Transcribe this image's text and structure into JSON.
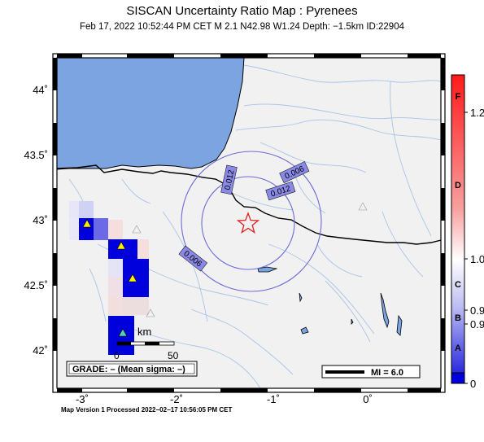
{
  "title": "SISCAN Uncertainty Ratio Map : Pyrenees",
  "subtitle": "Feb 17, 2022 10:52:44 PM CET   M 2.1    N42.98 W1.24    Depth: −1.5km    ID:22904",
  "footer": "Map Version 1 Processed 2022−02−17 10:56:05 PM CET",
  "axes": {
    "x_ticks": [
      "-3˚",
      "-2˚",
      "-1˚",
      "0˚"
    ],
    "y_ticks": [
      "44˚",
      "43.5˚",
      "43˚",
      "42.5˚",
      "42˚"
    ]
  },
  "contours": {
    "labels": [
      "0.012",
      "0.006",
      "0.012",
      "0.006"
    ]
  },
  "scale_bar": {
    "unit": "km",
    "start": "0",
    "end": "50"
  },
  "grade_box": "GRADE: – (Mean sigma: –)",
  "mi_box": "MI = 6.0",
  "colorbar": {
    "grades": [
      "F",
      "D",
      "C",
      "B",
      "A"
    ],
    "values": [
      "1.2",
      "1.0",
      "0.9",
      "0.9",
      "0"
    ]
  },
  "colors": {
    "sea": "#7ba4e0",
    "land": "#f1f1f1",
    "border": "#000000",
    "contour": "#6b6bd6",
    "epicenter": "#e02020",
    "cell_blue": "#0000dd",
    "station": "#ffee00"
  }
}
